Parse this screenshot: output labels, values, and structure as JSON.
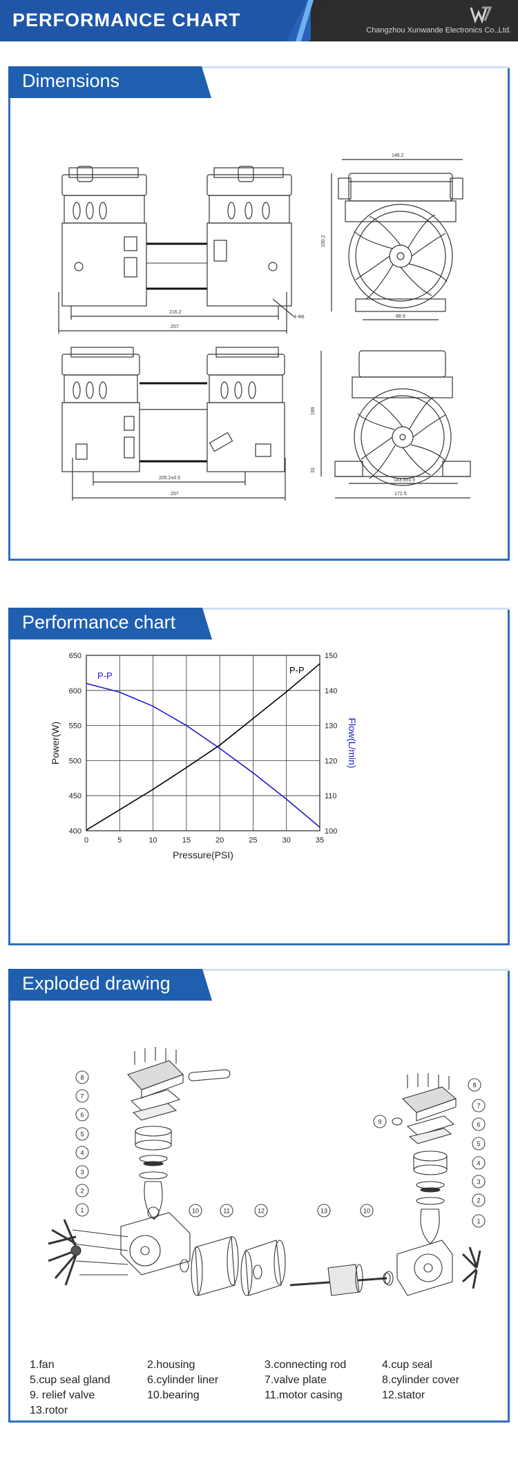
{
  "header": {
    "title": "PERFORMANCE CHART",
    "company": "Changzhou Xunwande Electronics Co.,Ltd."
  },
  "dimensions": {
    "tab": "Dimensions",
    "labels": {
      "top_width": "146.2",
      "side_height": "190.2",
      "inner_width": "216.2",
      "total_width": "257",
      "base_width": "88.9",
      "hole": "4-Φ6",
      "lower_inner": "205.2±0.5",
      "lower_total": "257",
      "lower_height": "189",
      "lower_small": "33",
      "lower_base": "143.5±0.5",
      "lower_base_total": "172.5"
    }
  },
  "performance": {
    "tab": "Performance chart"
  },
  "chart_data": {
    "type": "line",
    "xlabel": "Pressure(PSI)",
    "ylabel": "Power(W)",
    "y2label": "Flow(L/min)",
    "xlim": [
      0,
      35
    ],
    "ylim": [
      400,
      650
    ],
    "y2lim": [
      100,
      150
    ],
    "x_ticks": [
      0,
      5,
      10,
      15,
      20,
      25,
      30,
      35
    ],
    "y_ticks": [
      400,
      450,
      500,
      550,
      600,
      650
    ],
    "y2_ticks": [
      100,
      110,
      120,
      130,
      140,
      150
    ],
    "grid": true,
    "series": [
      {
        "name": "P-P",
        "axis": "left",
        "color": "#000000",
        "x": [
          0,
          5,
          10,
          15,
          20,
          25,
          30,
          35
        ],
        "y": [
          401,
          430,
          459,
          490,
          522,
          560,
          598,
          638
        ]
      },
      {
        "name": "P-P",
        "axis": "right",
        "color": "#1a1ad0",
        "x": [
          0,
          5,
          10,
          15,
          20,
          25,
          30,
          35
        ],
        "y": [
          142,
          139.5,
          135.5,
          130,
          123.5,
          116.5,
          109,
          101
        ]
      }
    ]
  },
  "exploded": {
    "tab": "Exploded drawing",
    "callouts_left": [
      "8",
      "7",
      "6",
      "5",
      "4",
      "3",
      "2",
      "1",
      "10",
      "11",
      "12"
    ],
    "callouts_right": [
      "8",
      "9",
      "7",
      "6",
      "5",
      "4",
      "3",
      "2",
      "1",
      "13",
      "10"
    ],
    "parts": [
      "1.fan",
      "2.housing",
      "3.connecting rod",
      "4.cup seal",
      "5.cup seal gland",
      "6.cylinder liner",
      "7.valve plate",
      "8.cylinder cover",
      "9. relief valve",
      "10.bearing",
      "11.motor casing",
      "12.stator",
      "13.rotor"
    ]
  }
}
